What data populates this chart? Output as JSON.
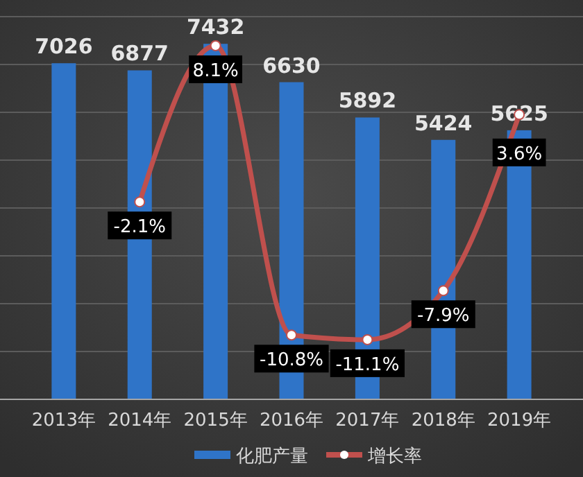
{
  "chart_data": {
    "type": "bar",
    "categories": [
      "2013年",
      "2014年",
      "2015年",
      "2016年",
      "2017年",
      "2018年",
      "2019年"
    ],
    "series": [
      {
        "name": "化肥产量",
        "color": "#2f74c8",
        "values": [
          7026,
          6877,
          7432,
          6630,
          5892,
          5424,
          5625
        ],
        "data_labels": true
      },
      {
        "name": "增长率",
        "type": "line",
        "axis": "y2",
        "color": "#c0504d",
        "values": [
          null,
          -2.1,
          8.1,
          -10.8,
          -11.1,
          -7.9,
          3.6
        ],
        "value_labels": [
          null,
          "-2.1%",
          "8.1%",
          "-10.8%",
          "-11.1%",
          "-7.9%",
          "3.6%"
        ],
        "marker": "circle"
      }
    ],
    "ylim": [
      0,
      8000
    ],
    "yticks": [
      {
        "value": 0,
        "label": null
      },
      {
        "value": 1000,
        "label": null
      },
      {
        "value": 2000,
        "label": null
      },
      {
        "value": 3000,
        "label": null
      },
      {
        "value": 4000,
        "label": null
      },
      {
        "value": 5000,
        "label": null
      },
      {
        "value": 6000,
        "label": null
      },
      {
        "value": 7000,
        "label": null
      },
      {
        "value": 8000,
        "label": null
      }
    ],
    "y2lim": [
      -15,
      10
    ],
    "grid": "y",
    "tick_labels": "x",
    "legend": "bottom"
  }
}
